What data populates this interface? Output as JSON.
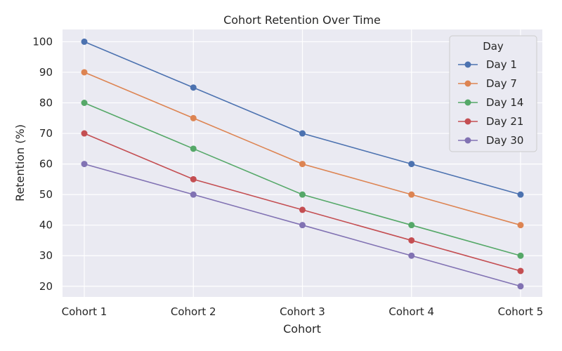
{
  "chart_data": {
    "type": "line",
    "title": "Cohort Retention Over Time",
    "xlabel": "Cohort",
    "ylabel": "Retention (%)",
    "categories": [
      "Cohort 1",
      "Cohort 2",
      "Cohort 3",
      "Cohort 4",
      "Cohort 5"
    ],
    "ylim": [
      16.5,
      104
    ],
    "yticks": [
      20,
      30,
      40,
      50,
      60,
      70,
      80,
      90,
      100
    ],
    "grid": true,
    "legend": {
      "title": "Day",
      "position": "top-right"
    },
    "background": "#eaeaf2",
    "series": [
      {
        "name": "Day 1",
        "color": "#4c72b0",
        "values": [
          100,
          85,
          70,
          60,
          50
        ]
      },
      {
        "name": "Day 7",
        "color": "#dd8452",
        "values": [
          90,
          75,
          60,
          50,
          40
        ]
      },
      {
        "name": "Day 14",
        "color": "#55a868",
        "values": [
          80,
          65,
          50,
          40,
          30
        ]
      },
      {
        "name": "Day 21",
        "color": "#c44e52",
        "values": [
          70,
          55,
          45,
          35,
          25
        ]
      },
      {
        "name": "Day 30",
        "color": "#8172b3",
        "values": [
          60,
          50,
          40,
          30,
          20
        ]
      }
    ]
  }
}
